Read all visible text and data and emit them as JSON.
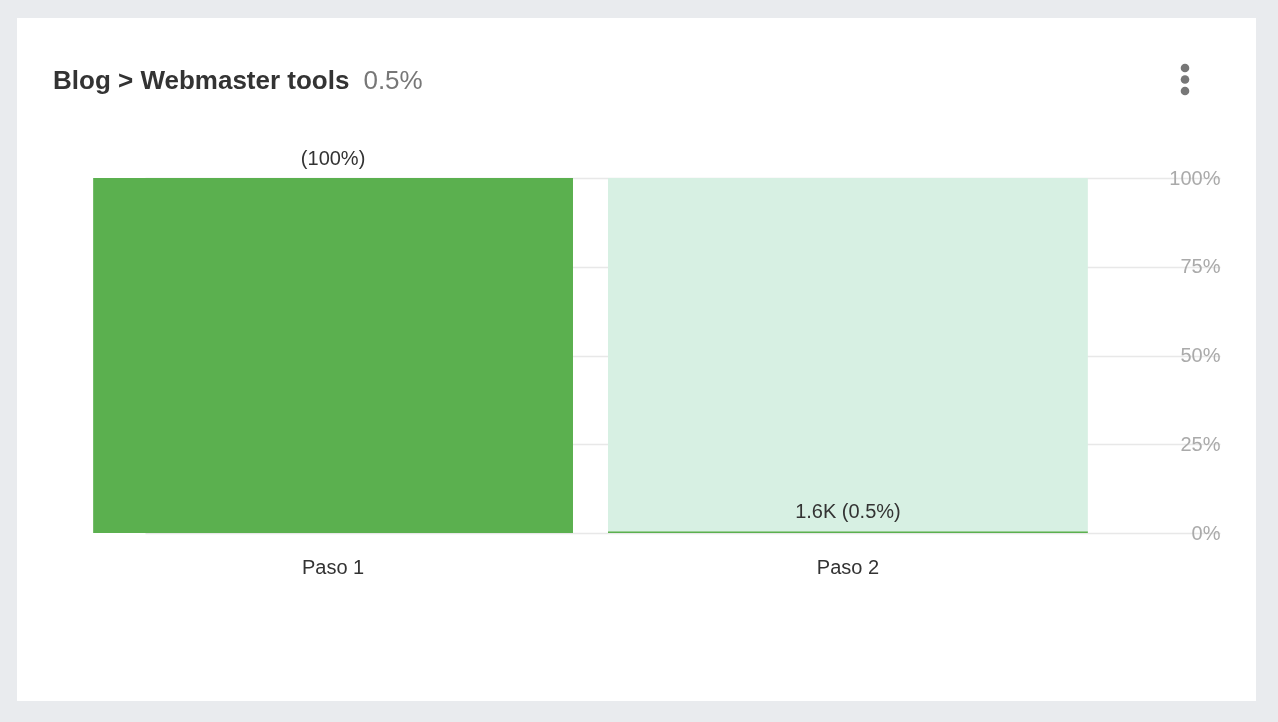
{
  "chart_data": {
    "type": "bar",
    "title": "Blog > Webmaster tools",
    "subtitle": "0.5%",
    "categories": [
      "Paso 1",
      "Paso 2"
    ],
    "series": [
      {
        "color": "#5bb04f",
        "values": [
          100,
          0.5
        ],
        "value_labels": [
          "(100%)",
          "1.6K (0.5%)"
        ]
      },
      {
        "color": "#d7f0e3",
        "values": [
          null,
          99.5
        ]
      }
    ],
    "stacked": true,
    "ylim": [
      0,
      100
    ],
    "yticks": [
      {
        "value": 0,
        "label": "0%"
      },
      {
        "value": 25,
        "label": "25%"
      },
      {
        "value": 50,
        "label": "50%"
      },
      {
        "value": 75,
        "label": "75%"
      },
      {
        "value": 100,
        "label": "100%"
      }
    ],
    "grid": "y"
  }
}
